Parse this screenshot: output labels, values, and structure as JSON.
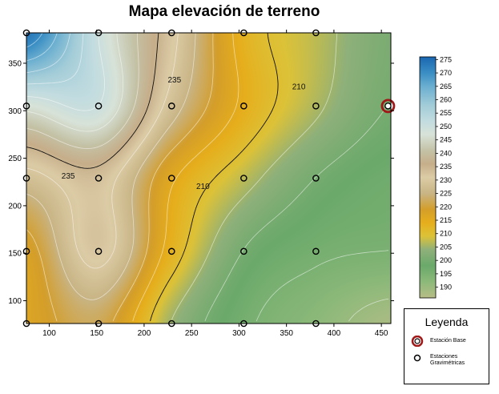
{
  "chart_data": {
    "type": "heatmap",
    "subtype": "contour",
    "title": "Mapa elevación de terreno",
    "xlabel": "",
    "ylabel": "",
    "xlim": [
      76,
      460
    ],
    "ylim": [
      76,
      382
    ],
    "x_ticks": [
      100,
      150,
      200,
      250,
      300,
      350,
      400,
      450
    ],
    "y_ticks": [
      100,
      150,
      200,
      250,
      300,
      350
    ],
    "colorbar": {
      "min": 186,
      "max": 276,
      "ticks": [
        190,
        195,
        200,
        205,
        210,
        215,
        220,
        225,
        230,
        235,
        240,
        245,
        250,
        255,
        260,
        265,
        270,
        275
      ],
      "stops": [
        {
          "value": 186,
          "color": "#b7bd86"
        },
        {
          "value": 192,
          "color": "#8cb97a"
        },
        {
          "value": 198,
          "color": "#6aa96a"
        },
        {
          "value": 204,
          "color": "#8fb07a"
        },
        {
          "value": 209,
          "color": "#dcc238"
        },
        {
          "value": 214,
          "color": "#e6ae1c"
        },
        {
          "value": 219,
          "color": "#d49e2a"
        },
        {
          "value": 225,
          "color": "#c8b484"
        },
        {
          "value": 231,
          "color": "#dccca6"
        },
        {
          "value": 236,
          "color": "#c6ae8a"
        },
        {
          "value": 241,
          "color": "#c4c2a6"
        },
        {
          "value": 247,
          "color": "#d8e2d8"
        },
        {
          "value": 252,
          "color": "#c2dce0"
        },
        {
          "value": 258,
          "color": "#a2ccd8"
        },
        {
          "value": 265,
          "color": "#6aaed0"
        },
        {
          "value": 270,
          "color": "#3a8ec4"
        },
        {
          "value": 276,
          "color": "#1a66b0"
        }
      ]
    },
    "contour_labels": [
      {
        "text": "235",
        "x": 232,
        "y": 333
      },
      {
        "text": "235",
        "x": 120,
        "y": 232
      },
      {
        "text": "210",
        "x": 363,
        "y": 326
      },
      {
        "text": "210",
        "x": 262,
        "y": 221
      }
    ],
    "stations": [
      {
        "x": 76,
        "y": 382
      },
      {
        "x": 152,
        "y": 382
      },
      {
        "x": 229,
        "y": 382
      },
      {
        "x": 305,
        "y": 382
      },
      {
        "x": 381,
        "y": 382
      },
      {
        "x": 76,
        "y": 305
      },
      {
        "x": 152,
        "y": 305
      },
      {
        "x": 229,
        "y": 305
      },
      {
        "x": 305,
        "y": 305
      },
      {
        "x": 381,
        "y": 305
      },
      {
        "x": 76,
        "y": 229
      },
      {
        "x": 152,
        "y": 229
      },
      {
        "x": 229,
        "y": 229
      },
      {
        "x": 305,
        "y": 229
      },
      {
        "x": 381,
        "y": 229
      },
      {
        "x": 76,
        "y": 152
      },
      {
        "x": 152,
        "y": 152
      },
      {
        "x": 229,
        "y": 152
      },
      {
        "x": 305,
        "y": 152
      },
      {
        "x": 381,
        "y": 152
      },
      {
        "x": 76,
        "y": 76
      },
      {
        "x": 152,
        "y": 76
      },
      {
        "x": 229,
        "y": 76
      },
      {
        "x": 305,
        "y": 76
      },
      {
        "x": 381,
        "y": 76
      }
    ],
    "base_station": {
      "x": 457,
      "y": 305
    },
    "elevation_grid": {
      "x": [
        76,
        152,
        229,
        305,
        381,
        457
      ],
      "y": [
        382,
        305,
        229,
        152,
        76
      ],
      "z": [
        [
          274,
          250,
          232,
          213,
          207,
          201
        ],
        [
          247,
          250,
          228,
          214,
          206,
          200
        ],
        [
          228,
          233,
          216,
          207,
          200,
          197
        ],
        [
          218,
          232,
          213,
          200,
          196,
          195
        ],
        [
          217,
          222,
          205,
          196,
          192,
          188
        ]
      ]
    }
  },
  "legend": {
    "title": "Leyenda",
    "base_label": "Estación Base",
    "grav_label": "Estaciones Gravimétricas",
    "base_color": "#a01818",
    "grav_color": "#000000"
  }
}
